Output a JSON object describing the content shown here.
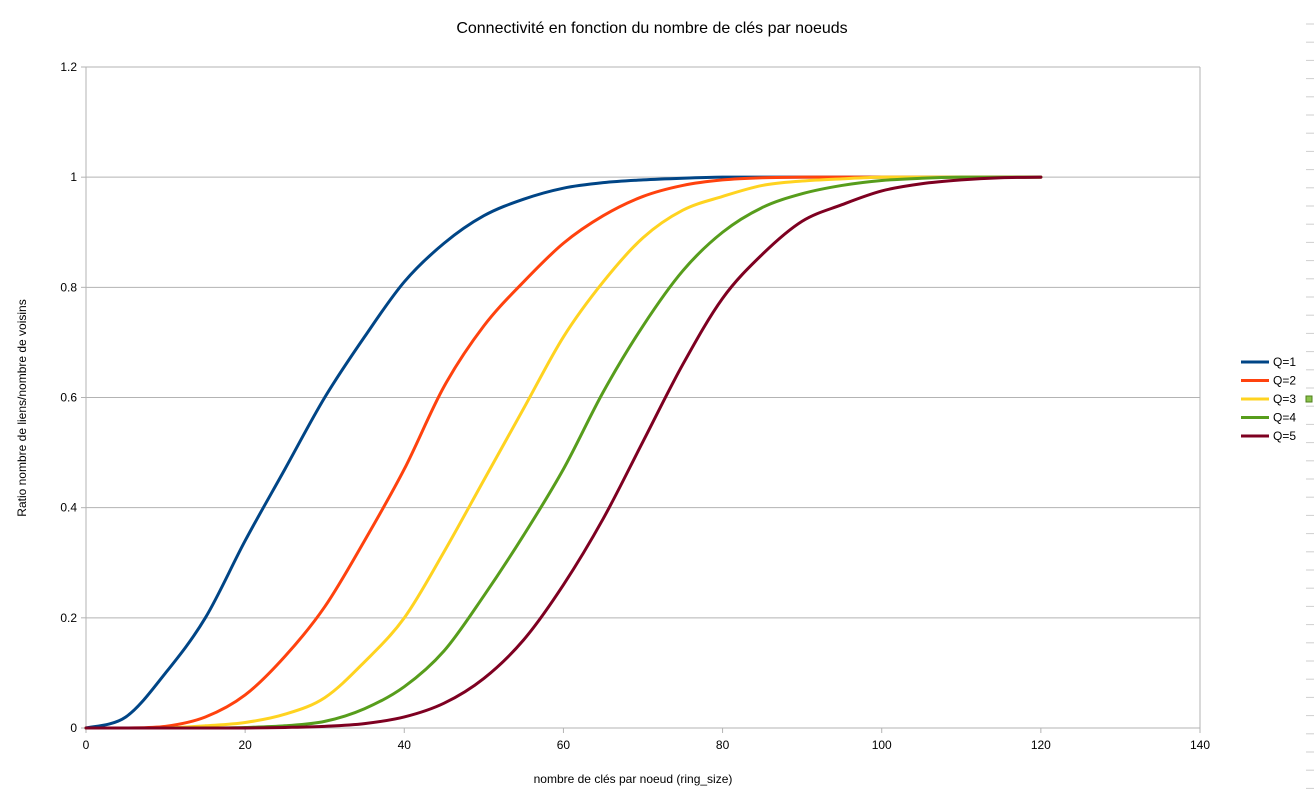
{
  "chart_data": {
    "type": "line",
    "title": "Connectivité en fonction du nombre de clés par noeuds",
    "xlabel": "nombre de clés par noeud (ring_size)",
    "ylabel": "Ratio nombre de liens/nombre de voisins",
    "xlim": [
      0,
      140
    ],
    "ylim": [
      0,
      1.2
    ],
    "x_ticks": [
      0,
      20,
      40,
      60,
      80,
      100,
      120,
      140
    ],
    "y_ticks": [
      0,
      0.2,
      0.4,
      0.6,
      0.8,
      1,
      1.2
    ],
    "x_tick_labels": [
      "0",
      "20",
      "40",
      "60",
      "80",
      "100",
      "120",
      "140"
    ],
    "y_tick_labels": [
      "0",
      "0.2",
      "0.4",
      "0.6",
      "0.8",
      "1",
      "1.2"
    ],
    "grid": "horizontal",
    "legend_position": "right",
    "x": [
      0,
      5,
      10,
      15,
      20,
      25,
      30,
      35,
      40,
      45,
      50,
      55,
      60,
      65,
      70,
      75,
      80,
      85,
      90,
      95,
      100,
      105,
      110,
      115,
      120
    ],
    "series": [
      {
        "name": "Q=1",
        "color": "#004586",
        "values": [
          0,
          0.02,
          0.1,
          0.2,
          0.34,
          0.47,
          0.6,
          0.71,
          0.81,
          0.88,
          0.93,
          0.96,
          0.98,
          0.99,
          0.995,
          0.998,
          1,
          1,
          1,
          1,
          1,
          1,
          1,
          1,
          1
        ]
      },
      {
        "name": "Q=2",
        "color": "#ff420e",
        "values": [
          0,
          0,
          0.003,
          0.02,
          0.06,
          0.13,
          0.22,
          0.34,
          0.47,
          0.62,
          0.73,
          0.81,
          0.88,
          0.93,
          0.965,
          0.985,
          0.995,
          0.999,
          1,
          1,
          1,
          1,
          1,
          1,
          1
        ]
      },
      {
        "name": "Q=3",
        "color": "#ffd320",
        "values": [
          0,
          0,
          0,
          0.004,
          0.01,
          0.025,
          0.055,
          0.12,
          0.2,
          0.32,
          0.45,
          0.58,
          0.71,
          0.81,
          0.89,
          0.94,
          0.965,
          0.985,
          0.993,
          0.997,
          1,
          1,
          1,
          1,
          1
        ]
      },
      {
        "name": "Q=4",
        "color": "#579d1c",
        "values": [
          0,
          0,
          0,
          0,
          0.001,
          0.004,
          0.012,
          0.035,
          0.075,
          0.14,
          0.24,
          0.35,
          0.47,
          0.61,
          0.73,
          0.83,
          0.9,
          0.945,
          0.97,
          0.985,
          0.994,
          0.998,
          1,
          1,
          1
        ]
      },
      {
        "name": "Q=5",
        "color": "#7e0021",
        "values": [
          0,
          0,
          0,
          0,
          0,
          0.001,
          0.003,
          0.008,
          0.02,
          0.045,
          0.09,
          0.16,
          0.26,
          0.38,
          0.52,
          0.66,
          0.78,
          0.86,
          0.92,
          0.95,
          0.975,
          0.988,
          0.995,
          0.999,
          1
        ]
      }
    ]
  }
}
